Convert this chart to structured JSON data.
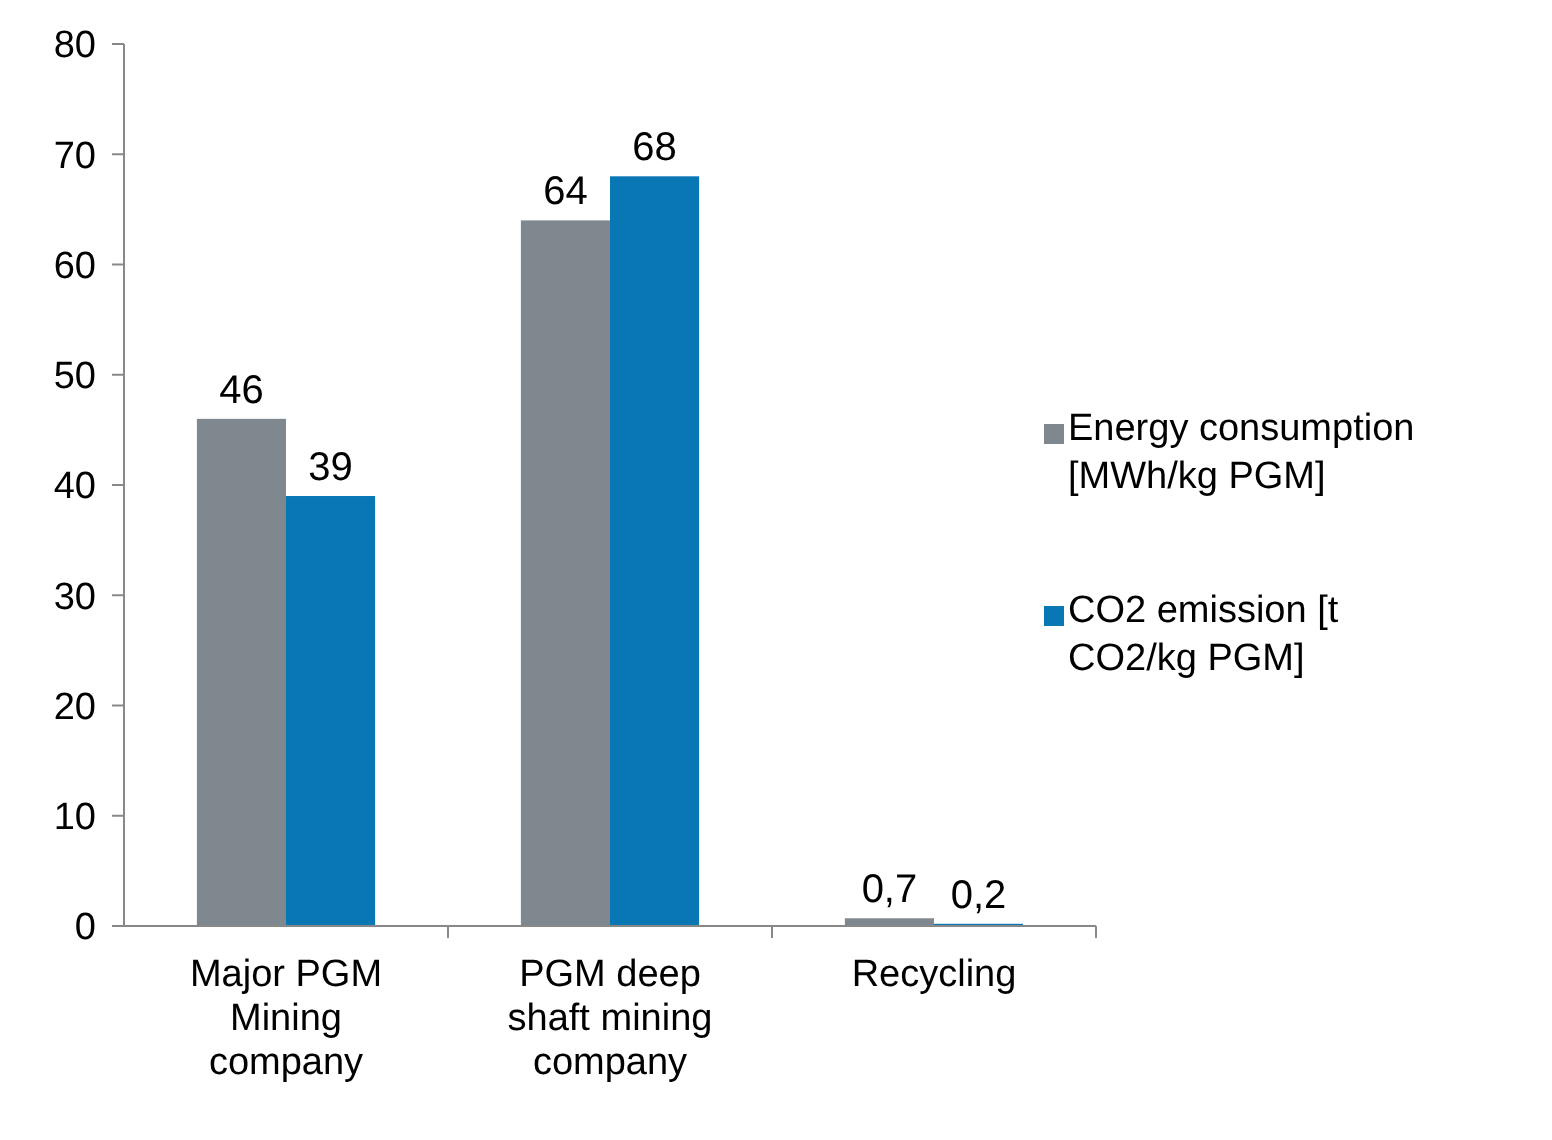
{
  "chart_data": {
    "type": "bar",
    "categories": [
      "Major PGM Mining company",
      "PGM deep shaft mining company",
      "Recycling"
    ],
    "series": [
      {
        "name": "Energy consumption [MWh/kg PGM]",
        "color": "#7f878f",
        "values": [
          46,
          64,
          0.7
        ],
        "value_labels": [
          "46",
          "64",
          "0,7"
        ]
      },
      {
        "name": "CO2 emission [t CO2/kg PGM]",
        "color": "#0a77b5",
        "values": [
          39,
          68,
          0.2
        ],
        "value_labels": [
          "39",
          "68",
          "0,2"
        ]
      }
    ],
    "ylim": [
      0,
      80
    ],
    "yticks": [
      0,
      10,
      20,
      30,
      40,
      50,
      60,
      70,
      80
    ],
    "grid": false,
    "legend": "right"
  }
}
